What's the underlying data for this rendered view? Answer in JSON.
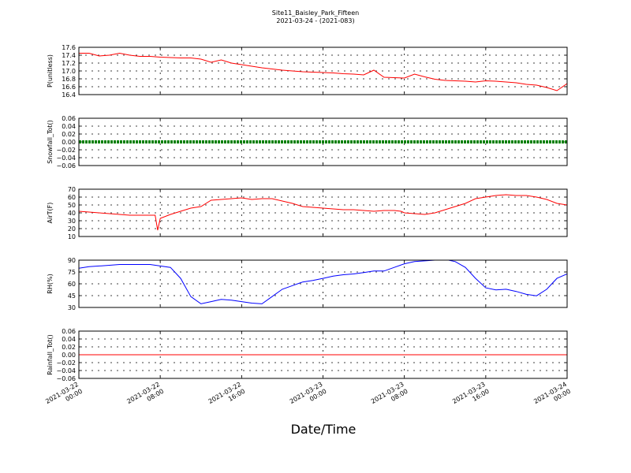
{
  "title_line1": "Site11_Baisley_Park_Fifteen",
  "title_line2": "2021-03-24 - (2021-083)",
  "xlabel": "Date/Time",
  "chart_data": {
    "type": "line",
    "grid": true,
    "x_range": [
      "2021-03-22 00:00",
      "2021-03-24 00:00"
    ],
    "x_ticks": [
      {
        "value": "2021-03-22 00:00",
        "lines": [
          "2021-03-22",
          "00:00"
        ]
      },
      {
        "value": "2021-03-22 08:00",
        "lines": [
          "2021-03-22",
          "08:00"
        ]
      },
      {
        "value": "2021-03-22 16:00",
        "lines": [
          "2021-03-22",
          "16:00"
        ]
      },
      {
        "value": "2021-03-23 00:00",
        "lines": [
          "2021-03-23",
          "00:00"
        ]
      },
      {
        "value": "2021-03-23 08:00",
        "lines": [
          "2021-03-23",
          "08:00"
        ]
      },
      {
        "value": "2021-03-23 16:00",
        "lines": [
          "2021-03-23",
          "16:00"
        ]
      },
      {
        "value": "2021-03-24 00:00",
        "lines": [
          "2021-03-24",
          "00:00"
        ]
      }
    ],
    "panels": [
      {
        "ylabel": "P(unitless)",
        "ylim": [
          16.4,
          17.6
        ],
        "yticks": [
          "16.4",
          "16.6",
          "16.8",
          "17.0",
          "17.2",
          "17.4",
          "17.6"
        ],
        "color": "#ff0000",
        "style": "line",
        "x": [
          "2021-03-22 00:00",
          "2021-03-22 01:00",
          "2021-03-22 02:00",
          "2021-03-22 03:00",
          "2021-03-22 04:00",
          "2021-03-22 05:00",
          "2021-03-22 06:00",
          "2021-03-22 07:00",
          "2021-03-22 08:00",
          "2021-03-22 09:00",
          "2021-03-22 10:00",
          "2021-03-22 11:00",
          "2021-03-22 12:00",
          "2021-03-22 13:00",
          "2021-03-22 14:00",
          "2021-03-22 15:00",
          "2021-03-22 16:00",
          "2021-03-22 17:00",
          "2021-03-22 18:00",
          "2021-03-22 19:00",
          "2021-03-22 20:00",
          "2021-03-22 21:00",
          "2021-03-22 22:00",
          "2021-03-22 23:00",
          "2021-03-23 00:00",
          "2021-03-23 01:00",
          "2021-03-23 02:00",
          "2021-03-23 03:00",
          "2021-03-23 04:00",
          "2021-03-23 05:00",
          "2021-03-23 06:00",
          "2021-03-23 07:00",
          "2021-03-23 08:00",
          "2021-03-23 09:00",
          "2021-03-23 10:00",
          "2021-03-23 11:00",
          "2021-03-23 12:00",
          "2021-03-23 13:00",
          "2021-03-23 14:00",
          "2021-03-23 15:00",
          "2021-03-23 16:00",
          "2021-03-23 17:00",
          "2021-03-23 18:00",
          "2021-03-23 19:00",
          "2021-03-23 20:00",
          "2021-03-23 21:00",
          "2021-03-23 22:00",
          "2021-03-23 23:00",
          "2021-03-24 00:00"
        ],
        "y": [
          17.45,
          17.45,
          17.38,
          17.4,
          17.45,
          17.4,
          17.37,
          17.37,
          17.35,
          17.34,
          17.33,
          17.33,
          17.3,
          17.22,
          17.28,
          17.2,
          17.16,
          17.12,
          17.08,
          17.05,
          17.02,
          17.0,
          16.98,
          16.97,
          16.96,
          16.95,
          16.93,
          16.92,
          16.9,
          17.02,
          16.84,
          16.83,
          16.82,
          16.92,
          16.85,
          16.79,
          16.76,
          16.75,
          16.74,
          16.72,
          16.75,
          16.74,
          16.72,
          16.7,
          16.66,
          16.64,
          16.58,
          16.5,
          16.68
        ]
      },
      {
        "ylabel": "Snowfall_Tot()",
        "ylim": [
          -0.06,
          0.06
        ],
        "yticks": [
          "−0.06",
          "−0.04",
          "−0.02",
          "0.00",
          "0.02",
          "0.04",
          "0.06"
        ],
        "color": "#008000",
        "style": "markers",
        "x": [
          "2021-03-22 00:00",
          "2021-03-24 00:00"
        ],
        "y": [
          0.0,
          0.0
        ]
      },
      {
        "ylabel": "AirT(F)",
        "ylim": [
          10,
          70
        ],
        "yticks": [
          "10",
          "20",
          "30",
          "40",
          "50",
          "60",
          "70"
        ],
        "color": "#ff0000",
        "style": "line",
        "x": [
          "2021-03-22 00:00",
          "2021-03-22 01:00",
          "2021-03-22 02:00",
          "2021-03-22 03:00",
          "2021-03-22 04:00",
          "2021-03-22 05:00",
          "2021-03-22 06:00",
          "2021-03-22 07:00",
          "2021-03-22 07:30",
          "2021-03-22 07:45",
          "2021-03-22 08:00",
          "2021-03-22 09:00",
          "2021-03-22 10:00",
          "2021-03-22 11:00",
          "2021-03-22 12:00",
          "2021-03-22 13:00",
          "2021-03-22 14:00",
          "2021-03-22 15:00",
          "2021-03-22 16:00",
          "2021-03-22 17:00",
          "2021-03-22 18:00",
          "2021-03-22 19:00",
          "2021-03-22 20:00",
          "2021-03-22 21:00",
          "2021-03-22 22:00",
          "2021-03-22 23:00",
          "2021-03-23 00:00",
          "2021-03-23 01:00",
          "2021-03-23 02:00",
          "2021-03-23 03:00",
          "2021-03-23 04:00",
          "2021-03-23 05:00",
          "2021-03-23 06:00",
          "2021-03-23 07:00",
          "2021-03-23 07:40",
          "2021-03-23 07:50",
          "2021-03-23 08:00",
          "2021-03-23 09:00",
          "2021-03-23 10:00",
          "2021-03-23 11:00",
          "2021-03-23 12:00",
          "2021-03-23 13:00",
          "2021-03-23 14:00",
          "2021-03-23 15:00",
          "2021-03-23 16:00",
          "2021-03-23 17:00",
          "2021-03-23 18:00",
          "2021-03-23 19:00",
          "2021-03-23 20:00",
          "2021-03-23 21:00",
          "2021-03-23 22:00",
          "2021-03-23 23:00",
          "2021-03-24 00:00"
        ],
        "y": [
          42,
          41,
          40,
          39,
          38,
          37,
          37,
          37,
          37,
          18,
          33,
          38,
          42,
          46,
          48,
          56,
          57,
          58,
          59,
          57,
          58,
          58,
          55,
          52,
          48,
          47,
          46,
          45,
          44,
          44,
          43,
          42,
          43,
          43,
          42,
          41,
          40,
          39,
          38,
          40,
          44,
          48,
          52,
          58,
          60,
          62,
          63,
          62,
          62,
          60,
          57,
          52,
          50
        ]
      },
      {
        "ylabel": "RH(%)",
        "ylim": [
          30,
          95
        ],
        "yticks": [
          "30",
          "45",
          "60",
          "75",
          "90"
        ],
        "color": "#0000ff",
        "style": "line",
        "x": [
          "2021-03-22 00:00",
          "2021-03-22 01:00",
          "2021-03-22 02:00",
          "2021-03-22 03:00",
          "2021-03-22 04:00",
          "2021-03-22 05:00",
          "2021-03-22 06:00",
          "2021-03-22 07:00",
          "2021-03-22 08:00",
          "2021-03-22 09:00",
          "2021-03-22 10:00",
          "2021-03-22 11:00",
          "2021-03-22 12:00",
          "2021-03-22 13:00",
          "2021-03-22 14:00",
          "2021-03-22 15:00",
          "2021-03-22 16:00",
          "2021-03-22 17:00",
          "2021-03-22 18:00",
          "2021-03-22 19:00",
          "2021-03-22 20:00",
          "2021-03-22 21:00",
          "2021-03-22 22:00",
          "2021-03-22 23:00",
          "2021-03-23 00:00",
          "2021-03-23 01:00",
          "2021-03-23 02:00",
          "2021-03-23 03:00",
          "2021-03-23 04:00",
          "2021-03-23 05:00",
          "2021-03-23 06:00",
          "2021-03-23 07:00",
          "2021-03-23 08:00",
          "2021-03-23 09:00",
          "2021-03-23 10:00",
          "2021-03-23 11:00",
          "2021-03-23 12:00",
          "2021-03-23 13:00",
          "2021-03-23 14:00",
          "2021-03-23 15:00",
          "2021-03-23 16:00",
          "2021-03-23 17:00",
          "2021-03-23 18:00",
          "2021-03-23 19:00",
          "2021-03-23 20:00",
          "2021-03-23 21:00",
          "2021-03-23 22:00",
          "2021-03-23 23:00",
          "2021-03-24 00:00"
        ],
        "y": [
          84,
          86,
          87,
          88,
          89,
          89,
          89,
          89,
          87,
          85,
          70,
          45,
          35,
          38,
          41,
          40,
          38,
          36,
          35,
          45,
          55,
          60,
          65,
          67,
          70,
          73,
          75,
          76,
          78,
          80,
          80,
          85,
          90,
          93,
          94,
          95,
          96,
          93,
          85,
          70,
          57,
          54,
          55,
          52,
          48,
          46,
          55,
          70,
          76
        ]
      },
      {
        "ylabel": "Rainfall_Tot()",
        "ylim": [
          -0.06,
          0.06
        ],
        "yticks": [
          "−0.06",
          "−0.04",
          "−0.02",
          "0.00",
          "0.02",
          "0.04",
          "0.06"
        ],
        "color": "#ff0000",
        "style": "line",
        "x": [
          "2021-03-22 00:00",
          "2021-03-24 00:00"
        ],
        "y": [
          0.0,
          0.0
        ]
      }
    ]
  }
}
